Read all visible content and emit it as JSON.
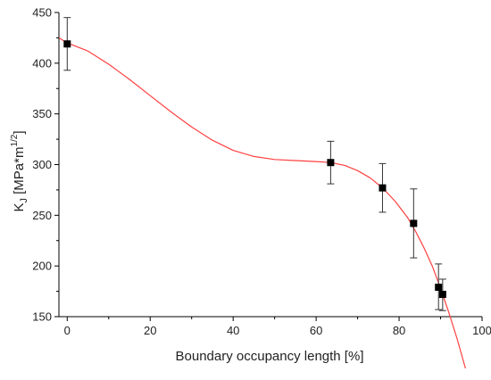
{
  "chart_data": {
    "type": "scatter",
    "xlabel": "Boundary occupancy length [%]",
    "ylabel": {
      "base": "K",
      "sub": "J",
      "unit_prefix": " [MPa*m",
      "sup": "1/2",
      "unit_suffix": "]"
    },
    "xlim": [
      -2,
      100
    ],
    "ylim": [
      150,
      450
    ],
    "xticks": [
      0,
      20,
      40,
      60,
      80,
      100
    ],
    "yticks": [
      150,
      200,
      250,
      300,
      350,
      400,
      450
    ],
    "grid": false,
    "legend": "none",
    "series": [
      {
        "type": "scatter",
        "marker": "square",
        "color": "#000000",
        "points": [
          {
            "x": 0,
            "y": 419,
            "err_low": 393,
            "err_high": 445
          },
          {
            "x": 63.5,
            "y": 302,
            "err_low": 281,
            "err_high": 323
          },
          {
            "x": 76,
            "y": 277,
            "err_low": 253,
            "err_high": 301
          },
          {
            "x": 83.5,
            "y": 242,
            "err_low": 208,
            "err_high": 276
          },
          {
            "x": 89.5,
            "y": 179,
            "err_low": 157,
            "err_high": 202
          },
          {
            "x": 90.5,
            "y": 172,
            "err_low": 156,
            "err_high": 187
          }
        ]
      },
      {
        "type": "line",
        "color": "#ff4040",
        "x": [
          -2,
          0,
          5,
          10,
          15,
          20,
          25,
          30,
          35,
          40,
          45,
          50,
          55,
          60,
          63.5,
          67,
          70,
          73,
          76,
          79,
          82,
          84,
          86,
          88,
          90,
          92,
          94,
          96
        ],
        "y": [
          425,
          420,
          412,
          399,
          384,
          368,
          352,
          337,
          324,
          314,
          308,
          305,
          304,
          303,
          302,
          299,
          294,
          287,
          277,
          264,
          248,
          234,
          218,
          200,
          178,
          154,
          128,
          99
        ]
      }
    ]
  }
}
